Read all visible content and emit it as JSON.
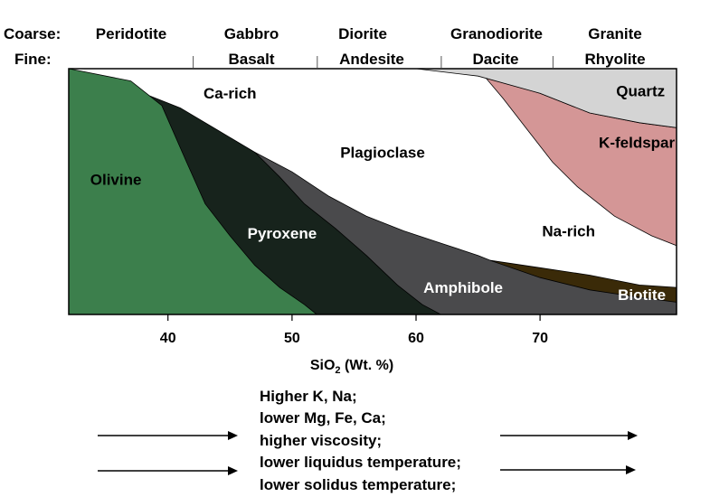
{
  "rock_names": {
    "coarse_label": "Coarse:",
    "fine_label": "Fine:",
    "coarse": [
      "Peridotite",
      "Gabbro",
      "Diorite",
      "Granodiorite",
      "Granite"
    ],
    "fine": [
      "Basalt",
      "Andesite",
      "Dacite",
      "Rhyolite"
    ],
    "divider_sio2": [
      42,
      52,
      62,
      71
    ]
  },
  "chart_data": {
    "type": "area",
    "xlabel": "SiO₂ (Wt. %)",
    "xlim": [
      32,
      81
    ],
    "x_ticks": [
      40,
      50,
      60,
      70
    ],
    "ylim": [
      0,
      100
    ],
    "y_axis_shown": false,
    "grid": false,
    "legend": "none",
    "series": [
      {
        "name": "Olivine",
        "color": "#3c7f4c",
        "lower": [
          [
            32,
            0
          ],
          [
            81,
            0
          ]
        ],
        "upper": [
          [
            32,
            100
          ],
          [
            37,
            95
          ],
          [
            39.5,
            85
          ],
          [
            41.5,
            62
          ],
          [
            43,
            45
          ],
          [
            45,
            32
          ],
          [
            47,
            20
          ],
          [
            49,
            11
          ],
          [
            51,
            4
          ],
          [
            52,
            0
          ]
        ]
      },
      {
        "name": "Pyroxene",
        "color": "#17231c",
        "upper": [
          [
            38,
            90
          ],
          [
            41,
            84
          ],
          [
            44,
            75
          ],
          [
            47,
            66
          ],
          [
            49,
            56
          ],
          [
            51,
            45
          ],
          [
            53.5,
            35
          ],
          [
            56,
            24
          ],
          [
            58.5,
            12
          ],
          [
            60.5,
            4
          ],
          [
            62,
            0
          ]
        ]
      },
      {
        "name": "Amphibole",
        "color": "#4a4a4c",
        "upper": [
          [
            47,
            66
          ],
          [
            50,
            58
          ],
          [
            53,
            48
          ],
          [
            56,
            40
          ],
          [
            59,
            34
          ],
          [
            62,
            29
          ],
          [
            65,
            24
          ],
          [
            66,
            22
          ],
          [
            70,
            17
          ],
          [
            74,
            12
          ],
          [
            78,
            8
          ],
          [
            81,
            5
          ]
        ]
      },
      {
        "name": "Biotite",
        "color": "#3a2a08",
        "upper": [
          [
            66,
            22
          ],
          [
            70,
            19
          ],
          [
            74,
            16
          ],
          [
            78,
            12
          ],
          [
            81,
            11
          ]
        ],
        "lower": [
          [
            66,
            22
          ],
          [
            70,
            15
          ],
          [
            74,
            10
          ],
          [
            78,
            7
          ],
          [
            81,
            5
          ]
        ]
      },
      {
        "name": "Plagioclase",
        "color": "#ffffff",
        "upper": [
          [
            32,
            100
          ],
          [
            81,
            100
          ]
        ]
      },
      {
        "name": "K-feldspar",
        "color": "#d49696",
        "upper": [
          [
            65.5,
            97
          ],
          [
            70,
            90
          ],
          [
            74,
            82
          ],
          [
            78,
            78
          ],
          [
            81,
            76
          ]
        ],
        "lower": [
          [
            65.5,
            97
          ],
          [
            67,
            88
          ],
          [
            69,
            75
          ],
          [
            71,
            62
          ],
          [
            73,
            52
          ],
          [
            76,
            40
          ],
          [
            79,
            32
          ],
          [
            81,
            28
          ]
        ]
      },
      {
        "name": "Quartz",
        "color": "#d4d4d4",
        "upper": [
          [
            60,
            100
          ],
          [
            81,
            100
          ]
        ],
        "lower": [
          [
            60,
            100
          ],
          [
            65,
            97
          ],
          [
            70,
            90
          ],
          [
            74,
            82
          ],
          [
            78,
            78
          ],
          [
            81,
            76
          ]
        ]
      }
    ],
    "labels": [
      {
        "text": "Olivine",
        "x": 35.8,
        "y": 55
      },
      {
        "text": "Pyroxene",
        "x": 49.2,
        "y": 33
      },
      {
        "text": "Amphibole",
        "x": 63.8,
        "y": 11
      },
      {
        "text": "Biotite",
        "x": 78.2,
        "y": 8
      },
      {
        "text": "Plagioclase",
        "x": 57.3,
        "y": 66
      },
      {
        "text": "Ca-rich",
        "x": 45,
        "y": 90
      },
      {
        "text": "Na-rich",
        "x": 72.3,
        "y": 34
      },
      {
        "text": "K-feldspar",
        "x": 77.8,
        "y": 70
      },
      {
        "text": "Quartz",
        "x": 78.1,
        "y": 91
      }
    ]
  },
  "notes": {
    "lines": [
      "Higher K, Na;",
      "lower Mg, Fe, Ca;",
      "higher viscosity;",
      "lower liquidus temperature;",
      "lower solidus temperature;"
    ]
  }
}
